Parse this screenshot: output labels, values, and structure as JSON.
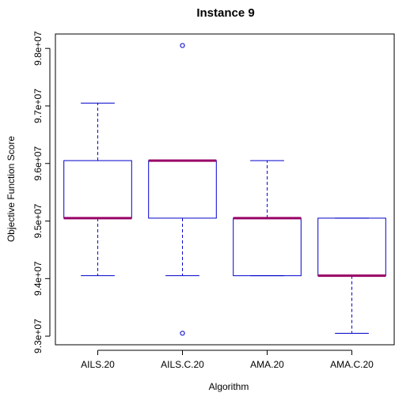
{
  "chart_data": {
    "type": "boxplot",
    "title": "Instance 9",
    "xlabel": "Algorithm",
    "ylabel": "Objective Function Score",
    "categories": [
      "AILS.20",
      "AILS.C.20",
      "AMA.20",
      "AMA.C.20"
    ],
    "yticks": [
      93000000,
      94000000,
      95000000,
      96000000,
      97000000,
      98000000
    ],
    "ytick_labels": [
      "9.3e+07",
      "9.4e+07",
      "9.5e+07",
      "9.6e+07",
      "9.7e+07",
      "9.8e+07"
    ],
    "ylim": [
      92850000,
      98250000
    ],
    "boxes": [
      {
        "name": "AILS.20",
        "whisker_low": 94050000,
        "q1": 95050000,
        "median": 95050000,
        "q3": 96050000,
        "whisker_high": 97050000,
        "outliers": []
      },
      {
        "name": "AILS.C.20",
        "whisker_low": 94050000,
        "q1": 95050000,
        "median": 96050000,
        "q3": 96050000,
        "whisker_high": 96050000,
        "outliers": [
          98050000,
          93050000
        ]
      },
      {
        "name": "AMA.20",
        "whisker_low": 94050000,
        "q1": 94050000,
        "median": 95050000,
        "q3": 95050000,
        "whisker_high": 96050000,
        "outliers": []
      },
      {
        "name": "AMA.C.20",
        "whisker_low": 93050000,
        "q1": 94050000,
        "median": 94050000,
        "q3": 95050000,
        "whisker_high": 95050000,
        "outliers": []
      }
    ],
    "colors": {
      "box": "#0000cc",
      "median": "#990066",
      "frame": "#000000"
    },
    "grid": false,
    "legend": "none"
  }
}
